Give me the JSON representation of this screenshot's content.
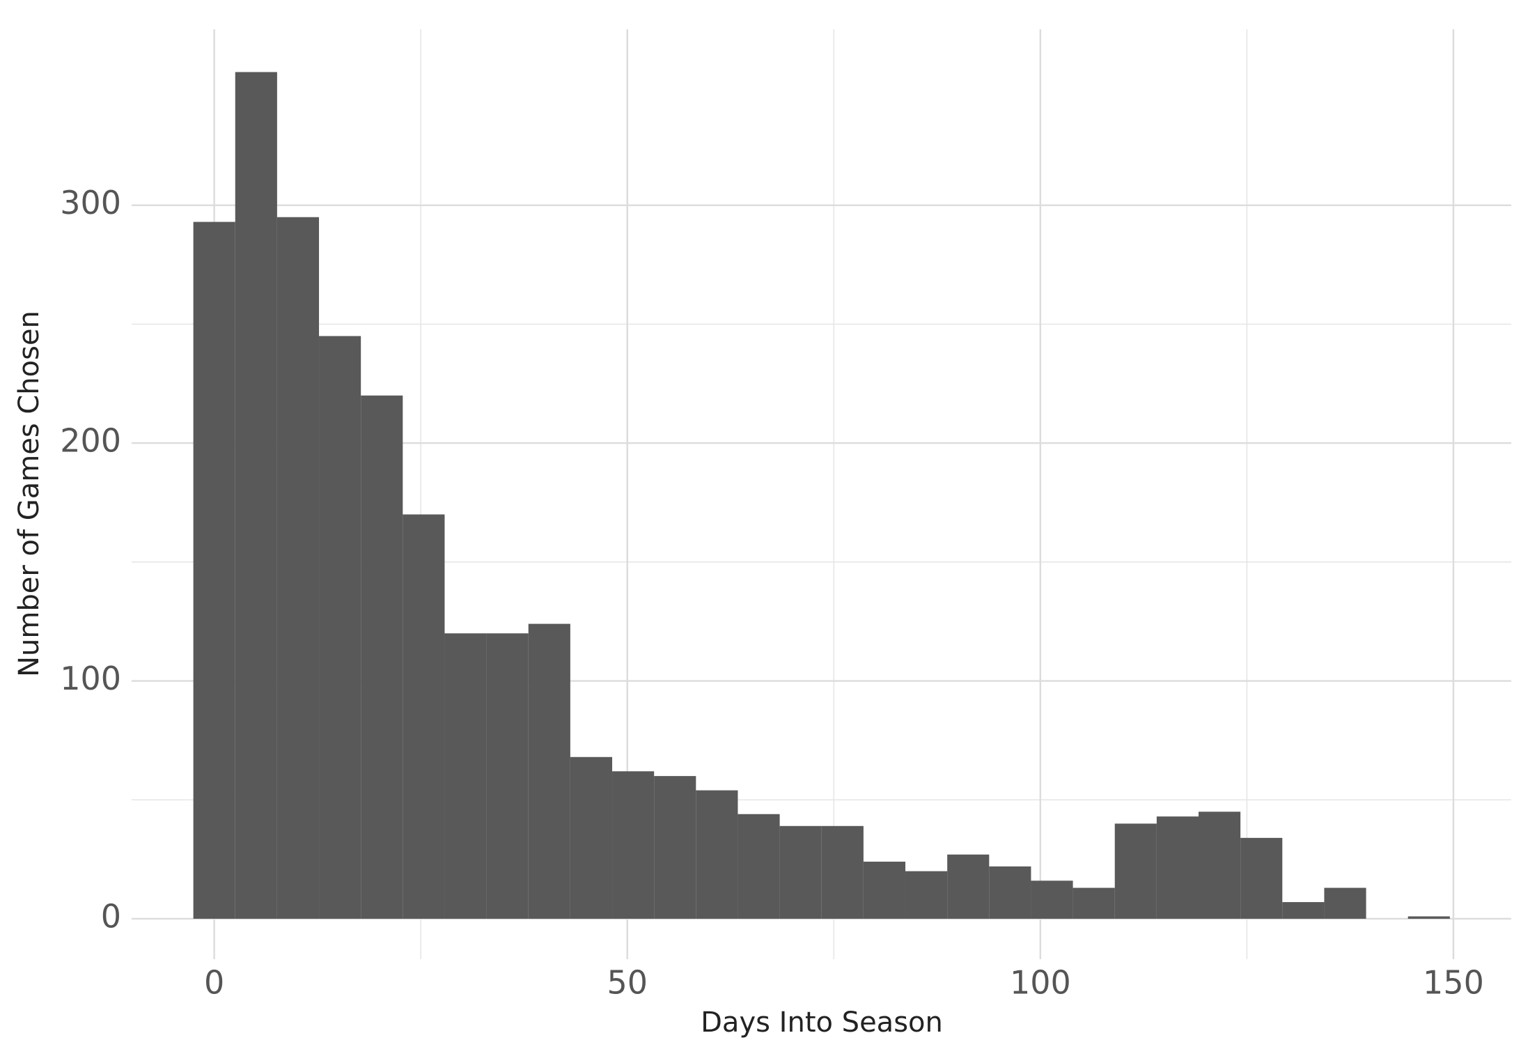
{
  "chart_data": {
    "type": "histogram",
    "x_label": "Days Into Season",
    "y_label": "Number of Games Chosen",
    "bins": [
      -2.53,
      2.54,
      7.61,
      12.68,
      17.75,
      22.82,
      27.89,
      32.96,
      38.03,
      43.1,
      48.17,
      53.24,
      58.31,
      63.38,
      68.45,
      73.52,
      78.59,
      83.66,
      88.73,
      93.8,
      98.87,
      103.94,
      109.01,
      114.08,
      119.15,
      124.22,
      129.29,
      134.36,
      139.43,
      144.5,
      149.57
    ],
    "values": [
      293,
      356,
      295,
      245,
      220,
      170,
      120,
      120,
      124,
      68,
      62,
      60,
      54,
      44,
      39,
      39,
      24,
      20,
      27,
      22,
      16,
      13,
      40,
      43,
      45,
      34,
      7,
      13,
      0,
      1
    ],
    "color": "#595959",
    "xlim": [
      -10,
      157
    ],
    "xticks": [
      0,
      50,
      100,
      150
    ],
    "ylim": [
      -17,
      374
    ],
    "yticks": [
      0,
      100,
      200,
      300
    ],
    "grid": true,
    "minor_grid": true
  }
}
